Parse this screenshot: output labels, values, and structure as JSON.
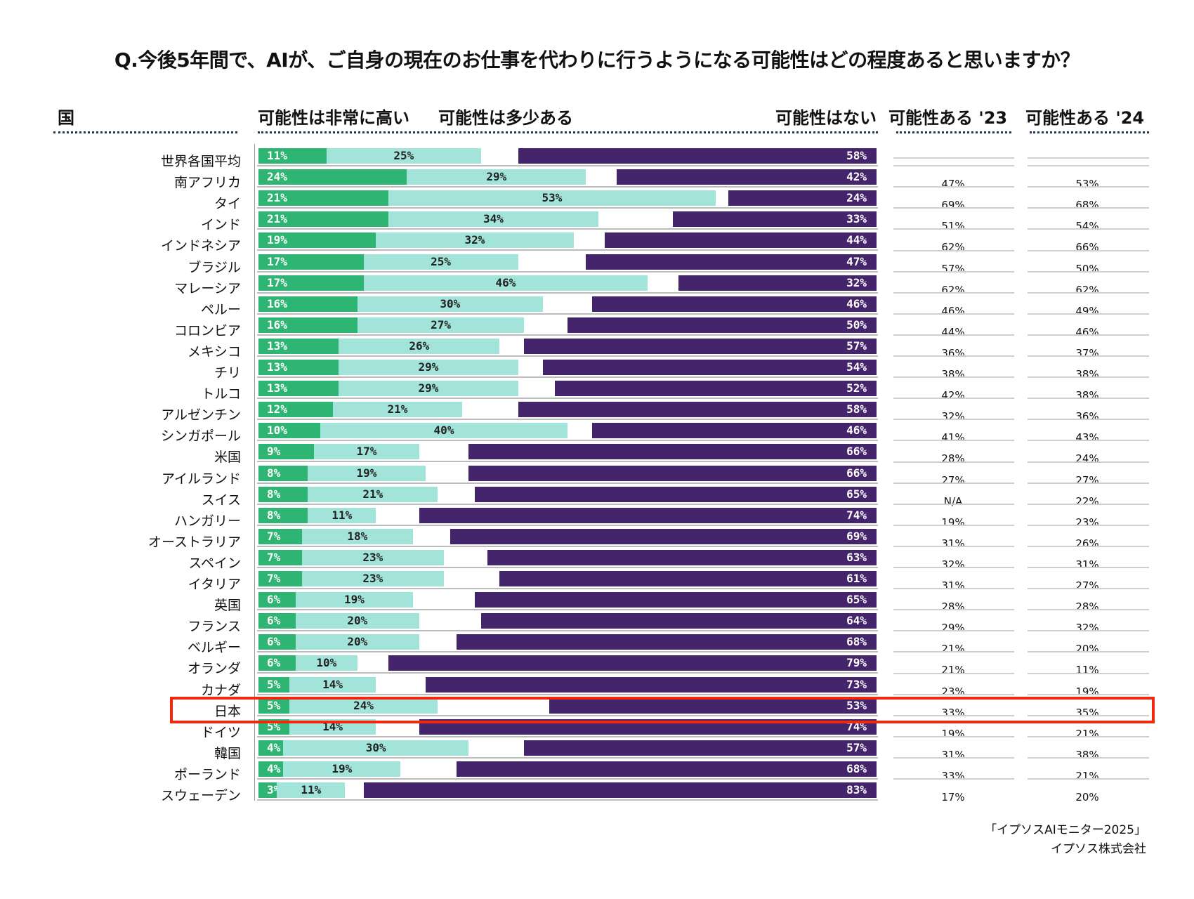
{
  "title": "Q.今後5年間で、AIが、ご自身の現在のお仕事を代わりに行うようになる可能性はどの程度あると思いますか？",
  "footer": {
    "source": "「イプソスAIモニター2025」",
    "company": "イプソス株式会社"
  },
  "colors": {
    "very_high": "#2fb573",
    "somewhat": "#a2e4d9",
    "none": "#44246a",
    "highlight": "#f0280e"
  },
  "chart_data": {
    "type": "bar",
    "stacked": true,
    "title": "Q.今後5年間で、AIが、ご自身の現在のお仕事を代わりに行うようになる可能性はどの程度あると思いますか？",
    "xlim": [
      0,
      100
    ],
    "headers": {
      "country": "国",
      "very_high": "可能性は非常に高い",
      "somewhat": "可能性は多少ある",
      "none": "可能性はない",
      "y23": "可能性ある '23",
      "y24": "可能性ある '24"
    },
    "highlight": "日本",
    "categories": [
      "世界各国平均",
      "南アフリカ",
      "タイ",
      "インド",
      "インドネシア",
      "ブラジル",
      "マレーシア",
      "ペルー",
      "コロンビア",
      "メキシコ",
      "チリ",
      "トルコ",
      "アルゼンチン",
      "シンガポール",
      "米国",
      "アイルランド",
      "スイス",
      "ハンガリー",
      "オーストラリア",
      "スペイン",
      "イタリア",
      "英国",
      "フランス",
      "ベルギー",
      "オランダ",
      "カナダ",
      "日本",
      "ドイツ",
      "韓国",
      "ポーランド",
      "スウェーデン"
    ],
    "series": [
      {
        "name": "可能性は非常に高い",
        "values": [
          11,
          24,
          21,
          21,
          19,
          17,
          17,
          16,
          16,
          13,
          13,
          13,
          12,
          10,
          9,
          8,
          8,
          8,
          7,
          7,
          7,
          6,
          6,
          6,
          6,
          5,
          5,
          5,
          4,
          4,
          3
        ]
      },
      {
        "name": "可能性は多少ある",
        "values": [
          25,
          29,
          53,
          34,
          32,
          25,
          46,
          30,
          27,
          26,
          29,
          29,
          21,
          40,
          17,
          19,
          21,
          11,
          18,
          23,
          23,
          19,
          20,
          20,
          10,
          14,
          24,
          14,
          30,
          19,
          11
        ]
      },
      {
        "name": "可能性はない",
        "values": [
          58,
          42,
          24,
          33,
          44,
          47,
          32,
          46,
          50,
          57,
          54,
          52,
          58,
          46,
          66,
          66,
          65,
          74,
          69,
          63,
          61,
          65,
          64,
          68,
          79,
          73,
          53,
          74,
          57,
          68,
          83
        ]
      }
    ],
    "table": {
      "y23": [
        "",
        "47%",
        "69%",
        "51%",
        "62%",
        "57%",
        "62%",
        "46%",
        "44%",
        "36%",
        "38%",
        "42%",
        "32%",
        "41%",
        "28%",
        "27%",
        "N/A",
        "19%",
        "31%",
        "32%",
        "31%",
        "28%",
        "29%",
        "21%",
        "21%",
        "23%",
        "33%",
        "19%",
        "31%",
        "33%",
        "17%"
      ],
      "y24": [
        "",
        "53%",
        "68%",
        "54%",
        "66%",
        "50%",
        "62%",
        "49%",
        "46%",
        "37%",
        "38%",
        "38%",
        "36%",
        "43%",
        "24%",
        "27%",
        "22%",
        "23%",
        "26%",
        "31%",
        "27%",
        "28%",
        "32%",
        "20%",
        "11%",
        "19%",
        "35%",
        "21%",
        "38%",
        "21%",
        "20%"
      ]
    }
  }
}
